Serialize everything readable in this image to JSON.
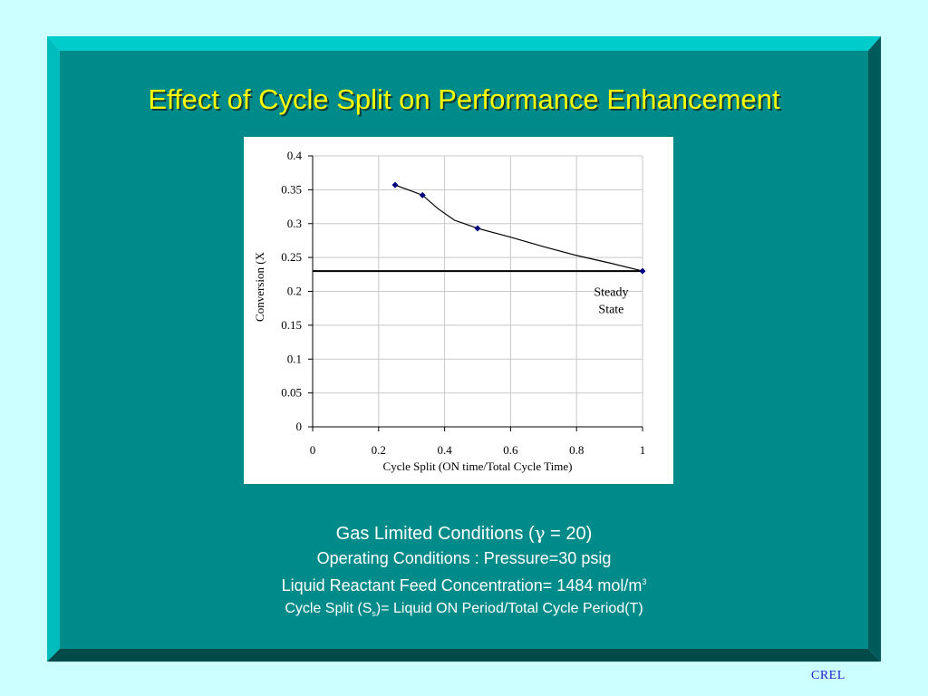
{
  "slide": {
    "title": "Effect of Cycle Split on Performance Enhancement",
    "colors": {
      "page_background": "#ccffff",
      "panel_fill": "#008b8b",
      "bevel_light": "#00cccc",
      "bevel_dark": "#005a5a",
      "title": "#ffff00",
      "caption": "#ffffff",
      "logo": "#2222cc"
    }
  },
  "captions": {
    "line1_prefix": "Gas Limited Conditions (",
    "line1_symbol": "γ",
    "line1_suffix": " = 20)",
    "line2": "Operating Conditions : Pressure=30 psig",
    "line3_text": "Liquid Reactant Feed Concentration= 1484 mol/m",
    "line3_sup": "3",
    "line4_prefix": "Cycle Split (S",
    "line4_sub": "s",
    "line4_suffix": ")= Liquid ON Period/Total Cycle Period(T)"
  },
  "logo": "CREL",
  "chart_data": {
    "type": "line",
    "xlabel": "Cycle Split (ON time/Total Cycle Time)",
    "ylabel": "Conversion (X",
    "xlim": [
      0,
      1
    ],
    "ylim": [
      0,
      0.4
    ],
    "xticks": [
      0,
      0.2,
      0.4,
      0.6,
      0.8,
      1
    ],
    "xtick_labels": [
      "0",
      "0.2",
      "0.4",
      "0.6",
      "0.8",
      "1"
    ],
    "yticks": [
      0,
      0.05,
      0.1,
      0.15,
      0.2,
      0.25,
      0.3,
      0.35,
      0.4
    ],
    "ytick_labels": [
      "0",
      "0.05",
      "0.1",
      "0.15",
      "0.2",
      "0.25",
      "0.3",
      "0.35",
      "0.4"
    ],
    "grid": true,
    "series": [
      {
        "color": "#000080",
        "marker": "diamond",
        "x": [
          0.25,
          0.333,
          0.5,
          1.0
        ],
        "y": [
          0.357,
          0.342,
          0.293,
          0.23
        ],
        "curve_x": [
          0.25,
          0.3,
          0.333,
          0.38,
          0.43,
          0.5,
          0.6,
          0.7,
          0.8,
          0.9,
          1.0
        ],
        "curve_y": [
          0.357,
          0.348,
          0.342,
          0.322,
          0.305,
          0.293,
          0.28,
          0.266,
          0.253,
          0.242,
          0.23
        ]
      }
    ],
    "reference_line": {
      "y": 0.23,
      "color": "#000000"
    },
    "annotation": {
      "lines": [
        "Steady",
        "State"
      ],
      "x": 0.905,
      "y": 0.193
    }
  }
}
